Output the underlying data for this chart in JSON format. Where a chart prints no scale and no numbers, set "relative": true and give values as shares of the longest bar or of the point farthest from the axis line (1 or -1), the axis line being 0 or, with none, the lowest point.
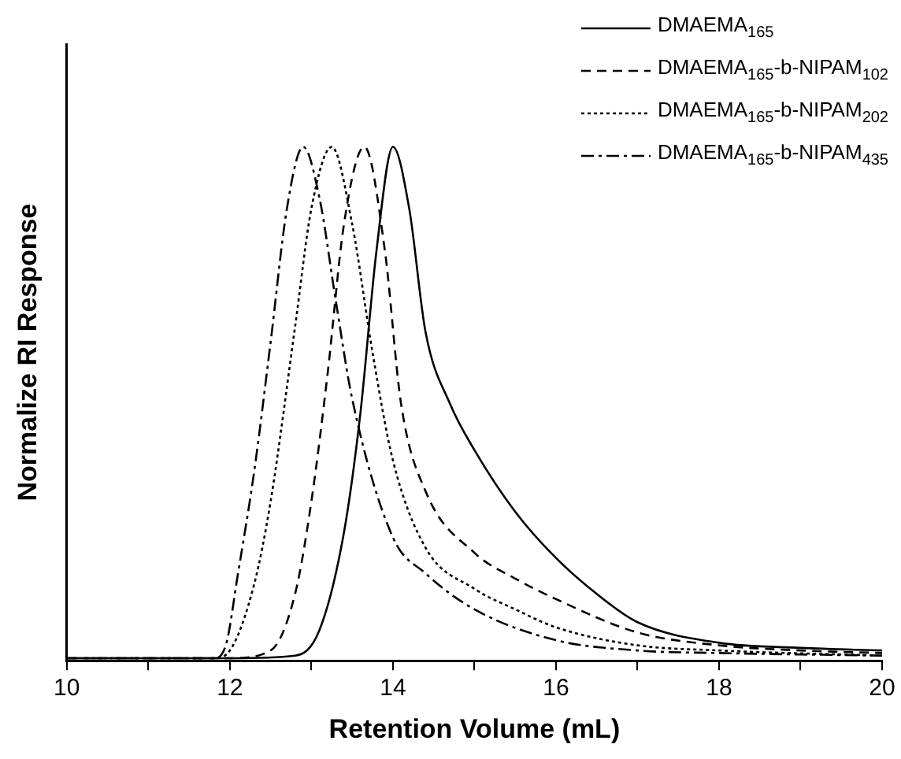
{
  "chart_data": {
    "type": "line",
    "xlabel": "Retention Volume (mL)",
    "ylabel": "Normalize RI Response",
    "relative": true,
    "xlim": [
      10,
      20
    ],
    "xticks": [
      10,
      {
        "value": 11,
        "label": null
      },
      12,
      {
        "value": 13,
        "label": null
      },
      14,
      {
        "value": 15,
        "label": null
      },
      16,
      {
        "value": 17,
        "label": null
      },
      18,
      {
        "value": 19,
        "label": null
      },
      20
    ],
    "grid": false,
    "legend": "top right",
    "marker": "none",
    "series": [
      {
        "name": "DMAEMA$_{165}$",
        "color": "#000000",
        "line_style": "solid",
        "x": [
          10,
          12,
          12.8,
          13.1,
          13.4,
          13.6,
          13.8,
          14.0,
          14.2,
          14.4,
          14.7,
          15.0,
          15.5,
          16.0,
          16.5,
          17.0,
          18.0,
          19.0,
          20.0
        ],
        "values": [
          0.005,
          0.005,
          0.01,
          0.06,
          0.25,
          0.48,
          0.8,
          1.0,
          0.88,
          0.64,
          0.5,
          0.41,
          0.29,
          0.2,
          0.13,
          0.075,
          0.035,
          0.025,
          0.02
        ]
      },
      {
        "name": "DMAEMA$_{165}$-b-NIPAM$_{102}$",
        "color": "#000000",
        "line_style": "dashed",
        "x": [
          10,
          12,
          12.5,
          12.8,
          13.0,
          13.2,
          13.4,
          13.65,
          13.9,
          14.1,
          14.4,
          15.0,
          15.5,
          16.0,
          17.0,
          18.0,
          19.0,
          20.0
        ],
        "values": [
          0.005,
          0.005,
          0.02,
          0.13,
          0.31,
          0.56,
          0.85,
          1.0,
          0.8,
          0.5,
          0.33,
          0.21,
          0.16,
          0.12,
          0.055,
          0.03,
          0.02,
          0.015
        ]
      },
      {
        "name": "DMAEMA$_{165}$-b-NIPAM$_{202}$",
        "color": "#000000",
        "line_style": "dotted",
        "x": [
          10,
          11.8,
          12.0,
          12.3,
          12.5,
          12.8,
          13.0,
          13.25,
          13.5,
          13.75,
          14.0,
          14.4,
          15.0,
          15.5,
          16.0,
          17.0,
          18.0,
          20.0
        ],
        "values": [
          0.005,
          0.005,
          0.02,
          0.15,
          0.31,
          0.65,
          0.88,
          1.0,
          0.85,
          0.6,
          0.39,
          0.22,
          0.14,
          0.1,
          0.065,
          0.03,
          0.02,
          0.01
        ]
      },
      {
        "name": "DMAEMA$_{165}$-b-NIPAM$_{435}$",
        "color": "#000000",
        "line_style": "dashdot",
        "x": [
          10,
          11.8,
          11.95,
          12.1,
          12.3,
          12.5,
          12.7,
          12.9,
          13.1,
          13.3,
          13.5,
          14.0,
          14.4,
          15.0,
          16.0,
          17.0,
          18.0,
          20.0
        ],
        "values": [
          0.005,
          0.005,
          0.03,
          0.17,
          0.37,
          0.62,
          0.88,
          1.0,
          0.9,
          0.7,
          0.51,
          0.24,
          0.17,
          0.1,
          0.04,
          0.02,
          0.015,
          0.01
        ]
      }
    ]
  }
}
